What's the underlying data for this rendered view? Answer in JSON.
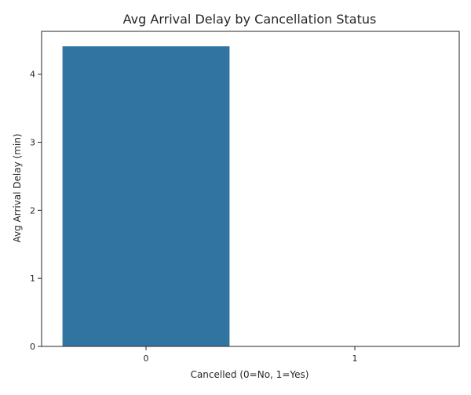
{
  "chart_data": {
    "type": "bar",
    "title": "Avg Arrival Delay by Cancellation Status",
    "xlabel": "Cancelled (0=No, 1=Yes)",
    "ylabel": "Avg Arrival Delay (min)",
    "categories": [
      "0",
      "1"
    ],
    "values": [
      4.41,
      0
    ],
    "ylim": [
      0,
      4.63
    ],
    "yticks": [
      0,
      1,
      2,
      3,
      4
    ],
    "grid": false,
    "legend": "none",
    "bar_color": "#3274a1"
  }
}
